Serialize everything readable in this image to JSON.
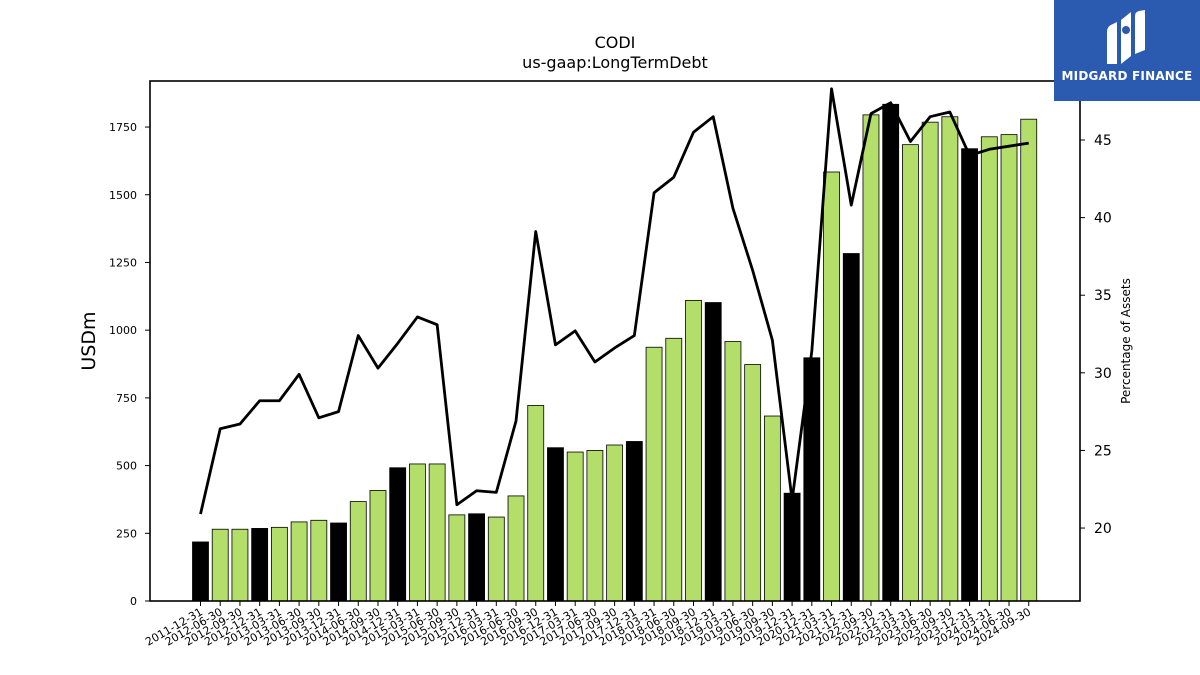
{
  "brand": {
    "name": "MIDGARD FINANCE",
    "logo_icon": "midgard-m-logo",
    "bg_color": "#2b5bb0"
  },
  "chart_data": {
    "type": "bar",
    "title": "CODI",
    "subtitle": "us-gaap:LongTermDebt",
    "ylabel": "USDm",
    "y2label": "Percentage of Assets",
    "ylim": [
      0,
      1920
    ],
    "y2lim": [
      15.3,
      48.8
    ],
    "yticks": [
      0,
      250,
      500,
      750,
      1000,
      1250,
      1500,
      1750
    ],
    "y2ticks": [
      20,
      25,
      30,
      35,
      40,
      45
    ],
    "categories": [
      "2011-12-31",
      "2012-06-30",
      "2012-09-30",
      "2012-12-31",
      "2013-03-31",
      "2013-06-30",
      "2013-09-30",
      "2013-12-31",
      "2014-06-30",
      "2014-09-30",
      "2014-12-31",
      "2015-03-31",
      "2015-06-30",
      "2015-09-30",
      "2015-12-31",
      "2016-03-31",
      "2016-06-30",
      "2016-09-30",
      "2016-12-31",
      "2017-03-31",
      "2017-06-30",
      "2017-09-30",
      "2017-12-31",
      "2018-03-31",
      "2018-06-30",
      "2018-09-30",
      "2018-12-31",
      "2019-03-31",
      "2019-06-30",
      "2019-09-30",
      "2019-12-31",
      "2020-12-31",
      "2021-03-31",
      "2021-12-31",
      "2022-09-30",
      "2022-12-31",
      "2023-03-31",
      "2023-06-30",
      "2023-09-30",
      "2023-12-31",
      "2024-03-31",
      "2024-06-30",
      "2024-09-30"
    ],
    "series": [
      {
        "kind": "bar",
        "values": [
          218,
          265,
          265,
          268,
          272,
          292,
          298,
          288,
          367,
          408,
          492,
          506,
          506,
          318,
          322,
          310,
          388,
          722,
          566,
          550,
          556,
          576,
          589,
          937,
          970,
          1110,
          1102,
          958,
          873,
          683,
          398,
          898,
          1584,
          1283,
          1795,
          1834,
          1685,
          1768,
          1788,
          1670,
          1714,
          1722,
          1779
        ],
        "highlight": [
          true,
          false,
          false,
          true,
          false,
          false,
          false,
          true,
          false,
          false,
          true,
          false,
          false,
          false,
          true,
          false,
          false,
          false,
          true,
          false,
          false,
          false,
          true,
          false,
          false,
          false,
          true,
          false,
          false,
          false,
          true,
          true,
          false,
          true,
          false,
          true,
          false,
          false,
          false,
          true,
          false,
          false,
          false
        ],
        "color": "#b3de69",
        "highlight_color": "#000000"
      },
      {
        "kind": "line",
        "axis": "right",
        "values": [
          20.9,
          26.4,
          26.7,
          28.2,
          28.2,
          29.9,
          27.1,
          27.5,
          32.4,
          30.3,
          31.9,
          33.6,
          33.1,
          21.5,
          22.4,
          22.3,
          26.9,
          39.1,
          31.8,
          32.7,
          30.7,
          31.6,
          32.4,
          41.6,
          42.6,
          45.5,
          46.5,
          40.6,
          36.6,
          32.1,
          21.8,
          31.4,
          48.3,
          40.8,
          46.7,
          47.4,
          44.9,
          46.5,
          46.8,
          44.0,
          44.4,
          44.6,
          44.8
        ],
        "color": "#000000"
      }
    ],
    "grid": false,
    "legend": "none"
  }
}
